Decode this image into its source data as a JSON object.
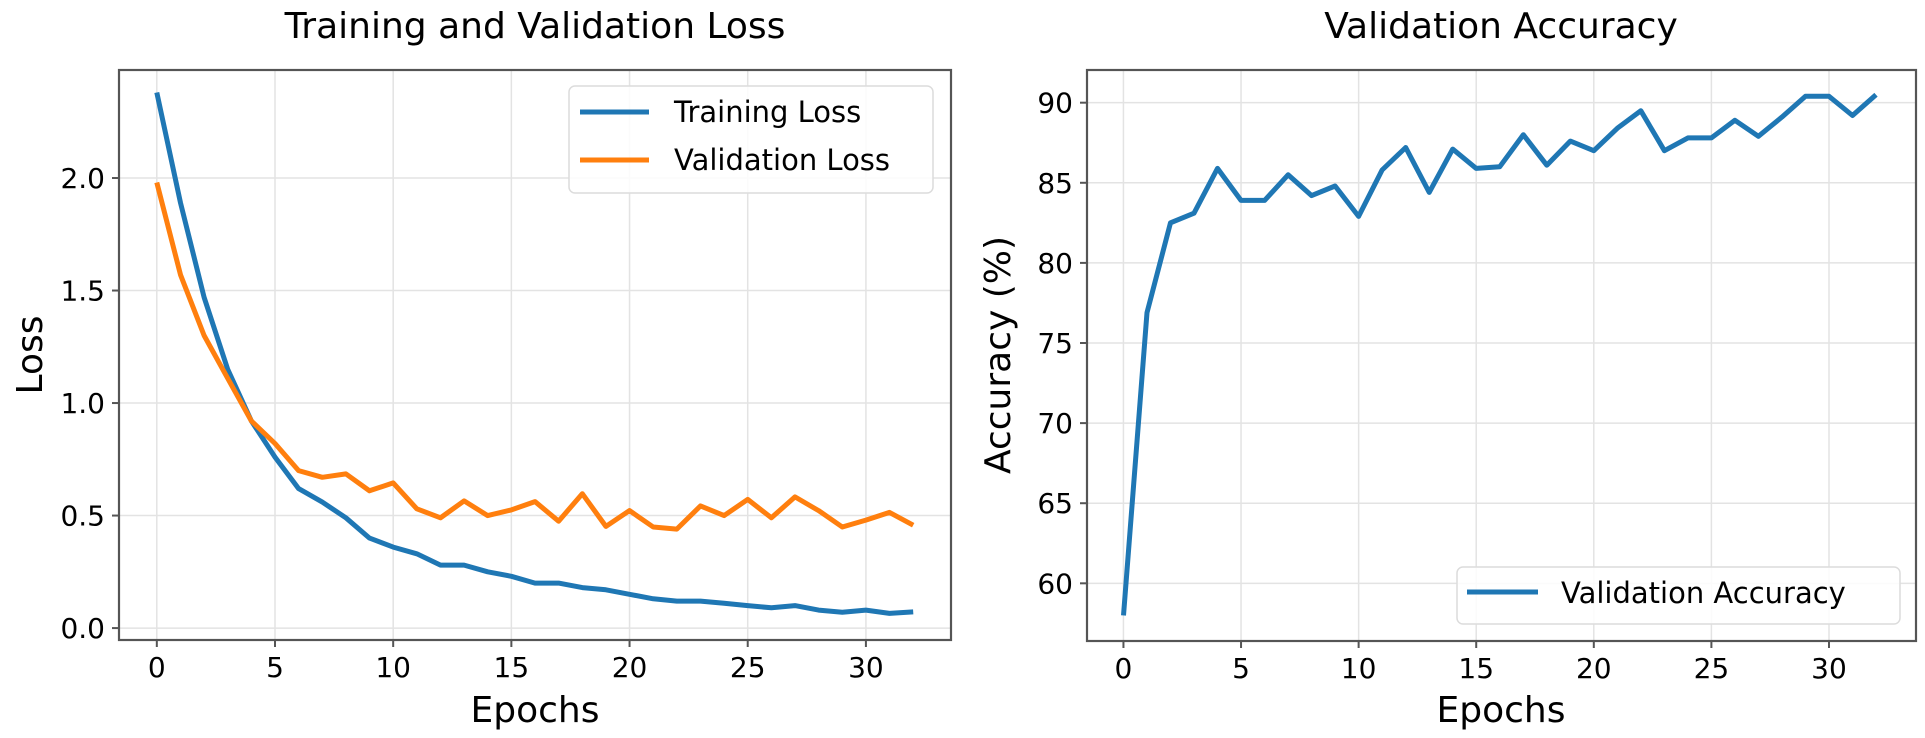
{
  "chart_data": [
    {
      "type": "line",
      "title": "Training and Validation Loss",
      "xlabel": "Epochs",
      "ylabel": "Loss",
      "xlim": [
        -1.6,
        33.6
      ],
      "ylim": [
        -0.053,
        2.48
      ],
      "xticks": [
        0,
        5,
        10,
        15,
        20,
        25,
        30
      ],
      "xtick_labels": [
        "0",
        "5",
        "10",
        "15",
        "20",
        "25",
        "30"
      ],
      "yticks": [
        0.0,
        0.5,
        1.0,
        1.5,
        2.0
      ],
      "ytick_labels": [
        "0.0",
        "0.5",
        "1.0",
        "1.5",
        "2.0"
      ],
      "grid": true,
      "legend": "top-right",
      "x": [
        0,
        1,
        2,
        3,
        4,
        5,
        6,
        7,
        8,
        9,
        10,
        11,
        12,
        13,
        14,
        15,
        16,
        17,
        18,
        19,
        20,
        21,
        22,
        23,
        24,
        25,
        26,
        27,
        28,
        29,
        30,
        31,
        32
      ],
      "series": [
        {
          "name": "Training Loss",
          "color": "#1f77b4",
          "values": [
            2.38,
            1.89,
            1.47,
            1.15,
            0.92,
            0.76,
            0.62,
            0.56,
            0.49,
            0.4,
            0.36,
            0.33,
            0.28,
            0.28,
            0.25,
            0.23,
            0.2,
            0.2,
            0.18,
            0.17,
            0.15,
            0.13,
            0.12,
            0.12,
            0.11,
            0.1,
            0.09,
            0.1,
            0.08,
            0.07,
            0.08,
            0.065,
            0.072
          ]
        },
        {
          "name": "Validation Loss",
          "color": "#ff7f0e",
          "values": [
            1.98,
            1.57,
            1.3,
            1.11,
            0.92,
            0.82,
            0.7,
            0.67,
            0.685,
            0.61,
            0.645,
            0.53,
            0.49,
            0.565,
            0.5,
            0.525,
            0.562,
            0.475,
            0.597,
            0.452,
            0.522,
            0.449,
            0.44,
            0.543,
            0.5,
            0.572,
            0.49,
            0.583,
            0.522,
            0.449,
            0.48,
            0.514,
            0.457
          ]
        }
      ]
    },
    {
      "type": "line",
      "title": "Validation Accuracy",
      "xlabel": "Epochs",
      "ylabel": "Accuracy (%)",
      "xlim": [
        -1.55,
        33.7
      ],
      "ylim": [
        56.4,
        92.04
      ],
      "xticks": [
        0,
        5,
        10,
        15,
        20,
        25,
        30
      ],
      "xtick_labels": [
        "0",
        "5",
        "10",
        "15",
        "20",
        "25",
        "30"
      ],
      "yticks": [
        60,
        65,
        70,
        75,
        80,
        85,
        90
      ],
      "ytick_labels": [
        "60",
        "65",
        "70",
        "75",
        "80",
        "85",
        "90"
      ],
      "grid": true,
      "legend": "bottom-right",
      "x": [
        0,
        1,
        2,
        3,
        4,
        5,
        6,
        7,
        8,
        9,
        10,
        11,
        12,
        13,
        14,
        15,
        16,
        17,
        18,
        19,
        20,
        21,
        22,
        23,
        24,
        25,
        26,
        27,
        28,
        29,
        30,
        31,
        32
      ],
      "series": [
        {
          "name": "Validation Accuracy",
          "color": "#1f77b4",
          "values": [
            58.0,
            76.9,
            82.5,
            83.1,
            85.9,
            83.9,
            83.9,
            85.5,
            84.2,
            84.8,
            82.9,
            85.8,
            87.2,
            84.4,
            87.1,
            85.9,
            86.0,
            88.0,
            86.1,
            87.6,
            87.0,
            88.4,
            89.5,
            87.0,
            87.8,
            87.8,
            88.9,
            87.9,
            89.1,
            90.4,
            90.4,
            89.2,
            90.5
          ]
        }
      ]
    }
  ]
}
